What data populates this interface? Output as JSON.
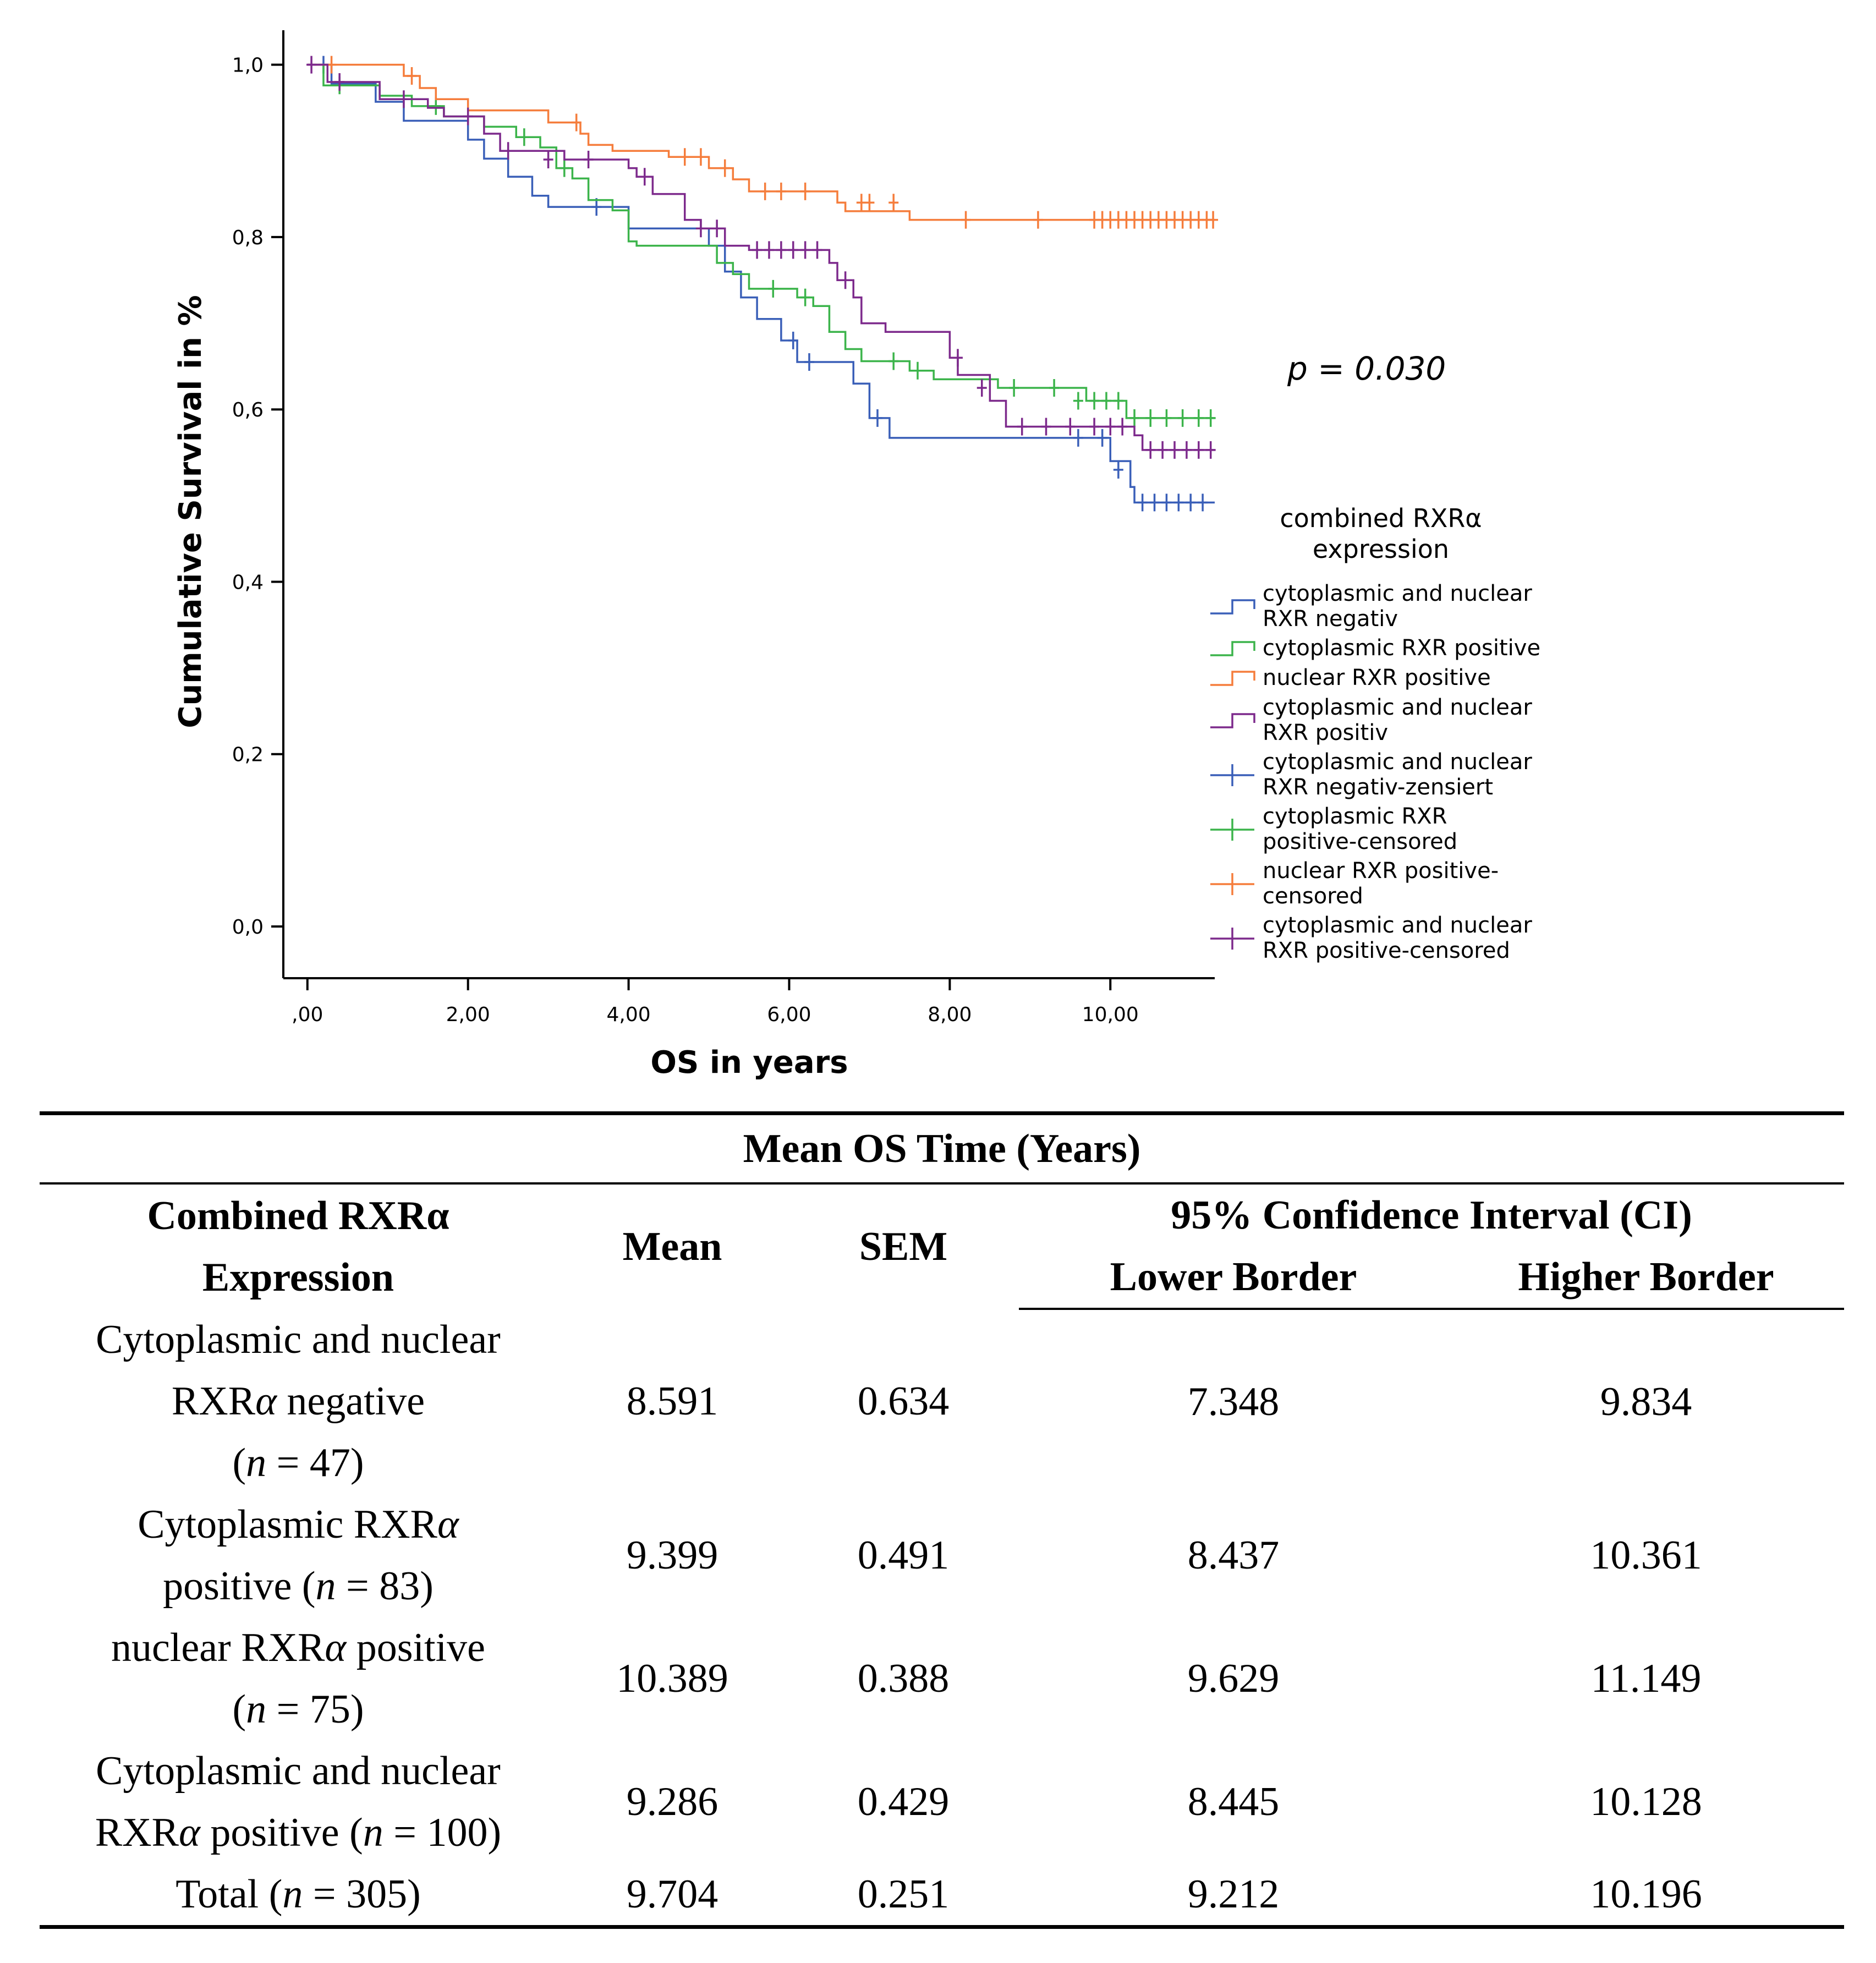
{
  "chart_data": {
    "type": "line",
    "subtype": "kaplan-meier",
    "xlabel": "OS in years",
    "ylabel": "Cumulative Survival in %",
    "xlim": [
      -0.3,
      11.3
    ],
    "ylim": [
      -0.06,
      1.04
    ],
    "x_ticks": [
      0,
      2,
      4,
      6,
      8,
      10
    ],
    "x_tick_labels": [
      ",00",
      "2,00",
      "4,00",
      "6,00",
      "8,00",
      "10,00"
    ],
    "y_ticks": [
      0,
      0.2,
      0.4,
      0.6,
      0.8,
      1.0
    ],
    "y_tick_labels": [
      "0,0",
      "0,2",
      "0,4",
      "0,6",
      "0,8",
      "1,0"
    ],
    "annotation": "p = 0.030",
    "legend_title": [
      "combined RXRα",
      "expression"
    ],
    "legend": [
      {
        "kind": "step",
        "color": "#3a5fb8",
        "lines": [
          "cytoplasmic and nuclear",
          "RXR negativ"
        ]
      },
      {
        "kind": "step",
        "color": "#3cb44b",
        "lines": [
          "cytoplasmic RXR positive"
        ]
      },
      {
        "kind": "step",
        "color": "#f57d3c",
        "lines": [
          "nuclear RXR positive"
        ]
      },
      {
        "kind": "step",
        "color": "#7d2a8c",
        "lines": [
          "cytoplasmic and nuclear",
          "RXR positiv"
        ]
      },
      {
        "kind": "cross",
        "color": "#3a5fb8",
        "lines": [
          "cytoplasmic and nuclear",
          "RXR negativ-zensiert"
        ]
      },
      {
        "kind": "cross",
        "color": "#3cb44b",
        "lines": [
          "cytoplasmic RXR",
          "positive-censored"
        ]
      },
      {
        "kind": "cross",
        "color": "#f57d3c",
        "lines": [
          "nuclear RXR positive-",
          "censored"
        ]
      },
      {
        "kind": "cross",
        "color": "#7d2a8c",
        "lines": [
          "cytoplasmic and nuclear",
          "RXR positive-censored"
        ]
      }
    ],
    "series": [
      {
        "name": "cytoplasmic and nuclear RXR negativ",
        "color": "#3a5fb8",
        "steps": [
          [
            0,
            1.0
          ],
          [
            0.3,
            0.978
          ],
          [
            0.85,
            0.957
          ],
          [
            1.2,
            0.935
          ],
          [
            2.0,
            0.913
          ],
          [
            2.2,
            0.891
          ],
          [
            2.5,
            0.87
          ],
          [
            2.8,
            0.848
          ],
          [
            3.0,
            0.835
          ],
          [
            4.0,
            0.81
          ],
          [
            4.3,
            0.81
          ],
          [
            5.0,
            0.79
          ],
          [
            5.2,
            0.76
          ],
          [
            5.4,
            0.73
          ],
          [
            5.6,
            0.705
          ],
          [
            5.9,
            0.68
          ],
          [
            6.1,
            0.655
          ],
          [
            6.8,
            0.63
          ],
          [
            7.0,
            0.59
          ],
          [
            7.25,
            0.567
          ],
          [
            10.0,
            0.54
          ],
          [
            10.25,
            0.51
          ],
          [
            10.3,
            0.492
          ],
          [
            11.3,
            0.492
          ]
        ],
        "censored": [
          [
            0.2,
            1.0
          ],
          [
            3.6,
            0.835
          ],
          [
            6.05,
            0.68
          ],
          [
            6.25,
            0.655
          ],
          [
            7.1,
            0.59
          ],
          [
            9.6,
            0.567
          ],
          [
            9.9,
            0.567
          ],
          [
            10.1,
            0.53
          ],
          [
            10.4,
            0.492
          ],
          [
            10.55,
            0.492
          ],
          [
            10.7,
            0.492
          ],
          [
            10.85,
            0.492
          ],
          [
            11.0,
            0.492
          ],
          [
            11.15,
            0.492
          ]
        ]
      },
      {
        "name": "cytoplasmic RXR positive",
        "color": "#3cb44b",
        "steps": [
          [
            0,
            1.0
          ],
          [
            0.2,
            0.976
          ],
          [
            0.9,
            0.964
          ],
          [
            1.3,
            0.952
          ],
          [
            1.7,
            0.94
          ],
          [
            2.2,
            0.928
          ],
          [
            2.6,
            0.916
          ],
          [
            2.9,
            0.904
          ],
          [
            3.1,
            0.88
          ],
          [
            3.3,
            0.868
          ],
          [
            3.5,
            0.843
          ],
          [
            3.8,
            0.831
          ],
          [
            4.0,
            0.795
          ],
          [
            4.1,
            0.79
          ],
          [
            4.9,
            0.79
          ],
          [
            5.1,
            0.77
          ],
          [
            5.3,
            0.757
          ],
          [
            5.5,
            0.74
          ],
          [
            6.1,
            0.73
          ],
          [
            6.3,
            0.72
          ],
          [
            6.5,
            0.69
          ],
          [
            6.7,
            0.67
          ],
          [
            6.9,
            0.656
          ],
          [
            7.5,
            0.645
          ],
          [
            7.8,
            0.635
          ],
          [
            8.6,
            0.625
          ],
          [
            9.7,
            0.61
          ],
          [
            10.2,
            0.59
          ],
          [
            11.3,
            0.59
          ]
        ],
        "censored": [
          [
            0.4,
            0.976
          ],
          [
            1.6,
            0.952
          ],
          [
            2.7,
            0.916
          ],
          [
            3.2,
            0.88
          ],
          [
            5.8,
            0.74
          ],
          [
            6.2,
            0.73
          ],
          [
            7.3,
            0.656
          ],
          [
            7.6,
            0.645
          ],
          [
            8.8,
            0.625
          ],
          [
            9.3,
            0.625
          ],
          [
            9.6,
            0.61
          ],
          [
            9.8,
            0.61
          ],
          [
            9.95,
            0.61
          ],
          [
            10.1,
            0.61
          ],
          [
            10.3,
            0.59
          ],
          [
            10.5,
            0.59
          ],
          [
            10.7,
            0.59
          ],
          [
            10.9,
            0.59
          ],
          [
            11.1,
            0.59
          ],
          [
            11.25,
            0.59
          ]
        ]
      },
      {
        "name": "nuclear RXR positive",
        "color": "#f57d3c",
        "steps": [
          [
            0,
            1.0
          ],
          [
            1.2,
            0.987
          ],
          [
            1.4,
            0.973
          ],
          [
            1.6,
            0.96
          ],
          [
            2.0,
            0.947
          ],
          [
            3.0,
            0.933
          ],
          [
            3.4,
            0.92
          ],
          [
            3.5,
            0.907
          ],
          [
            3.8,
            0.9
          ],
          [
            4.5,
            0.893
          ],
          [
            5.0,
            0.88
          ],
          [
            5.3,
            0.867
          ],
          [
            5.5,
            0.853
          ],
          [
            6.6,
            0.84
          ],
          [
            6.7,
            0.83
          ],
          [
            7.5,
            0.82
          ],
          [
            11.3,
            0.82
          ]
        ],
        "censored": [
          [
            0.3,
            1.0
          ],
          [
            1.3,
            0.987
          ],
          [
            3.35,
            0.933
          ],
          [
            4.7,
            0.893
          ],
          [
            4.9,
            0.893
          ],
          [
            5.2,
            0.88
          ],
          [
            5.7,
            0.853
          ],
          [
            5.9,
            0.853
          ],
          [
            6.2,
            0.853
          ],
          [
            6.9,
            0.84
          ],
          [
            7.0,
            0.84
          ],
          [
            7.3,
            0.84
          ],
          [
            8.2,
            0.82
          ],
          [
            9.1,
            0.82
          ],
          [
            9.8,
            0.82
          ],
          [
            9.9,
            0.82
          ],
          [
            10.0,
            0.82
          ],
          [
            10.1,
            0.82
          ],
          [
            10.2,
            0.82
          ],
          [
            10.3,
            0.82
          ],
          [
            10.4,
            0.82
          ],
          [
            10.5,
            0.82
          ],
          [
            10.6,
            0.82
          ],
          [
            10.7,
            0.82
          ],
          [
            10.8,
            0.82
          ],
          [
            10.9,
            0.82
          ],
          [
            11.0,
            0.82
          ],
          [
            11.1,
            0.82
          ],
          [
            11.2,
            0.82
          ],
          [
            11.28,
            0.82
          ]
        ]
      },
      {
        "name": "cytoplasmic and nuclear RXR positiv",
        "color": "#7d2a8c",
        "steps": [
          [
            0,
            1.0
          ],
          [
            0.25,
            0.98
          ],
          [
            0.9,
            0.96
          ],
          [
            1.5,
            0.95
          ],
          [
            1.7,
            0.94
          ],
          [
            2.2,
            0.92
          ],
          [
            2.4,
            0.9
          ],
          [
            3.2,
            0.89
          ],
          [
            4.0,
            0.88
          ],
          [
            4.1,
            0.87
          ],
          [
            4.3,
            0.85
          ],
          [
            4.7,
            0.82
          ],
          [
            4.9,
            0.81
          ],
          [
            5.2,
            0.79
          ],
          [
            5.5,
            0.785
          ],
          [
            6.5,
            0.77
          ],
          [
            6.6,
            0.75
          ],
          [
            6.8,
            0.73
          ],
          [
            6.9,
            0.7
          ],
          [
            7.2,
            0.69
          ],
          [
            8.0,
            0.66
          ],
          [
            8.1,
            0.64
          ],
          [
            8.5,
            0.61
          ],
          [
            8.7,
            0.58
          ],
          [
            10.3,
            0.57
          ],
          [
            10.4,
            0.553
          ],
          [
            11.3,
            0.553
          ]
        ],
        "censored": [
          [
            0.05,
            1.0
          ],
          [
            0.4,
            0.98
          ],
          [
            1.2,
            0.96
          ],
          [
            2.0,
            0.94
          ],
          [
            2.5,
            0.9
          ],
          [
            3.0,
            0.89
          ],
          [
            3.5,
            0.89
          ],
          [
            4.2,
            0.87
          ],
          [
            4.9,
            0.81
          ],
          [
            5.1,
            0.81
          ],
          [
            5.6,
            0.785
          ],
          [
            5.75,
            0.785
          ],
          [
            5.9,
            0.785
          ],
          [
            6.05,
            0.785
          ],
          [
            6.2,
            0.785
          ],
          [
            6.35,
            0.785
          ],
          [
            6.7,
            0.75
          ],
          [
            8.1,
            0.66
          ],
          [
            8.4,
            0.625
          ],
          [
            8.9,
            0.58
          ],
          [
            9.2,
            0.58
          ],
          [
            9.5,
            0.58
          ],
          [
            9.8,
            0.58
          ],
          [
            10.0,
            0.58
          ],
          [
            10.15,
            0.58
          ],
          [
            10.5,
            0.553
          ],
          [
            10.65,
            0.553
          ],
          [
            10.8,
            0.553
          ],
          [
            10.95,
            0.553
          ],
          [
            11.1,
            0.553
          ],
          [
            11.25,
            0.553
          ]
        ]
      }
    ]
  },
  "table": {
    "caption": "Mean OS Time (Years)",
    "headers": {
      "group_line1": "Combined RXRα",
      "group_line2": "Expression",
      "mean": "Mean",
      "sem": "SEM",
      "ci": "95% Confidence Interval (CI)",
      "lower": "Lower Border",
      "higher": "Higher Border"
    },
    "rows": [
      {
        "label_lines": [
          "Cytoplasmic and nuclear",
          "RXRα negative",
          "(n = 47)"
        ],
        "mean": "8.591",
        "sem": "0.634",
        "lower": "7.348",
        "higher": "9.834"
      },
      {
        "label_lines": [
          "Cytoplasmic RXRα",
          "positive (n = 83)"
        ],
        "mean": "9.399",
        "sem": "0.491",
        "lower": "8.437",
        "higher": "10.361"
      },
      {
        "label_lines": [
          "nuclear RXRα positive",
          "(n = 75)"
        ],
        "mean": "10.389",
        "sem": "0.388",
        "lower": "9.629",
        "higher": "11.149"
      },
      {
        "label_lines": [
          "Cytoplasmic and nuclear",
          "RXRα positive (n = 100)"
        ],
        "mean": "9.286",
        "sem": "0.429",
        "lower": "8.445",
        "higher": "10.128"
      },
      {
        "label_lines": [
          "Total (n = 305)"
        ],
        "mean": "9.704",
        "sem": "0.251",
        "lower": "9.212",
        "higher": "10.196"
      }
    ]
  }
}
